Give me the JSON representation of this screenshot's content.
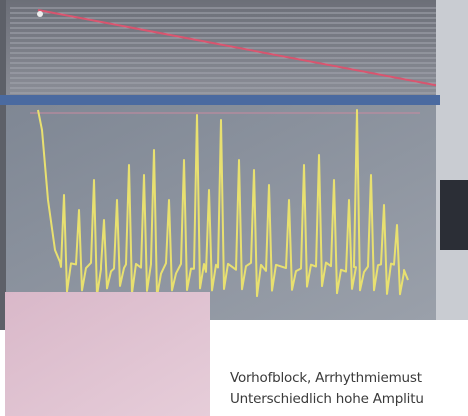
{
  "caption": {
    "lines": [
      "Vorhofblock, Arrhythmiemust",
      "Unterschiedlich hohe Amplitu"
    ]
  }
}
